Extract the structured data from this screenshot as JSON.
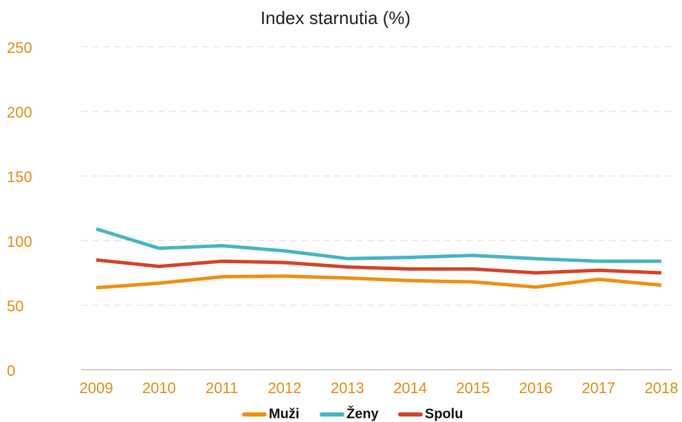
{
  "chart_data": {
    "type": "line",
    "title": "Index starnutia (%)",
    "categories": [
      "2009",
      "2010",
      "2011",
      "2012",
      "2013",
      "2014",
      "2015",
      "2016",
      "2017",
      "2018"
    ],
    "series": [
      {
        "name": "Muži",
        "color": "#f0900f",
        "values": [
          63.5,
          67,
          72,
          72.5,
          71,
          69,
          68,
          64,
          70,
          65.5
        ]
      },
      {
        "name": "Ženy",
        "color": "#46b5c2",
        "values": [
          109,
          94,
          96,
          92,
          86,
          87,
          88.5,
          86,
          84,
          84
        ]
      },
      {
        "name": "Spolu",
        "color": "#d4432a",
        "values": [
          85,
          80,
          84,
          83,
          79.5,
          78,
          78,
          75,
          77,
          75
        ]
      }
    ],
    "ylim": [
      0,
      250
    ],
    "yticks": [
      0,
      50,
      100,
      150,
      200,
      250
    ],
    "grid": true,
    "legend": "bottom"
  }
}
